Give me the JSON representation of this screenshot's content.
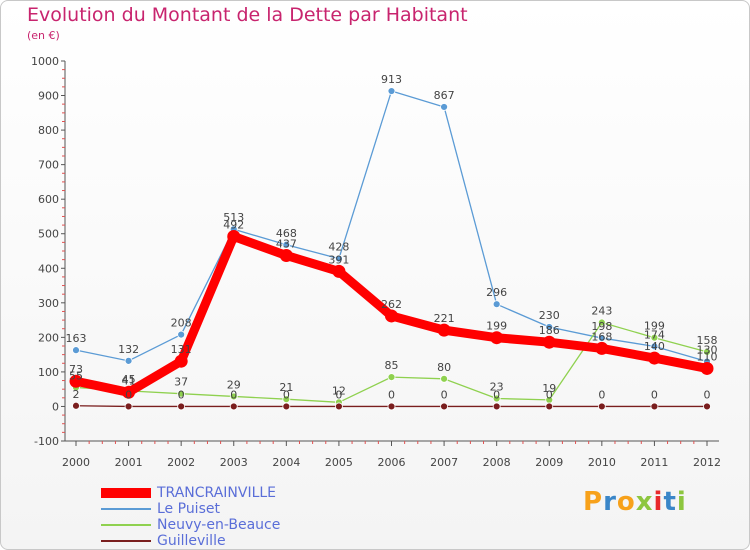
{
  "chart_data": {
    "type": "line",
    "title": "Evolution du Montant de la Dette par Habitant",
    "ylabel": "(en €)",
    "xlabel": "",
    "categories": [
      "2000",
      "2001",
      "2002",
      "2003",
      "2004",
      "2005",
      "2006",
      "2007",
      "2008",
      "2009",
      "2010",
      "2011",
      "2012"
    ],
    "ylim": [
      -100,
      1000
    ],
    "yticks": [
      -100,
      0,
      100,
      200,
      300,
      400,
      500,
      600,
      700,
      800,
      900,
      1000
    ],
    "grid": false,
    "legend_position": "bottom-left",
    "series": [
      {
        "name": "Le Puiset",
        "color": "#5b9bd5",
        "values": [
          163,
          132,
          208,
          513,
          468,
          428,
          913,
          867,
          296,
          230,
          198,
          174,
          130
        ]
      },
      {
        "name": "Neuvy-en-Beauce",
        "color": "#8fd14f",
        "values": [
          55,
          45,
          37,
          29,
          21,
          12,
          85,
          80,
          23,
          19,
          243,
          199,
          158
        ]
      },
      {
        "name": "Guilleville",
        "color": "#7a1e1e",
        "values": [
          2,
          0,
          0,
          0,
          0,
          0,
          0,
          0,
          0,
          0,
          0,
          0,
          0
        ]
      },
      {
        "name": "TRANCRAINVILLE",
        "color": "#ff0000",
        "values": [
          73,
          41,
          131,
          492,
          437,
          391,
          262,
          221,
          199,
          186,
          168,
          140,
          110
        ]
      }
    ],
    "legend": [
      "TRANCRAINVILLE",
      "Le Puiset",
      "Neuvy-en-Beauce",
      "Guilleville"
    ]
  },
  "logo": {
    "letters": [
      "P",
      "r",
      "o",
      "x",
      "i",
      "t",
      "i"
    ],
    "colors": [
      "#f7a11a",
      "#3a86c8",
      "#f7a11a",
      "#8dc63f",
      "#e8282b",
      "#3a86c8",
      "#8dc63f"
    ]
  }
}
